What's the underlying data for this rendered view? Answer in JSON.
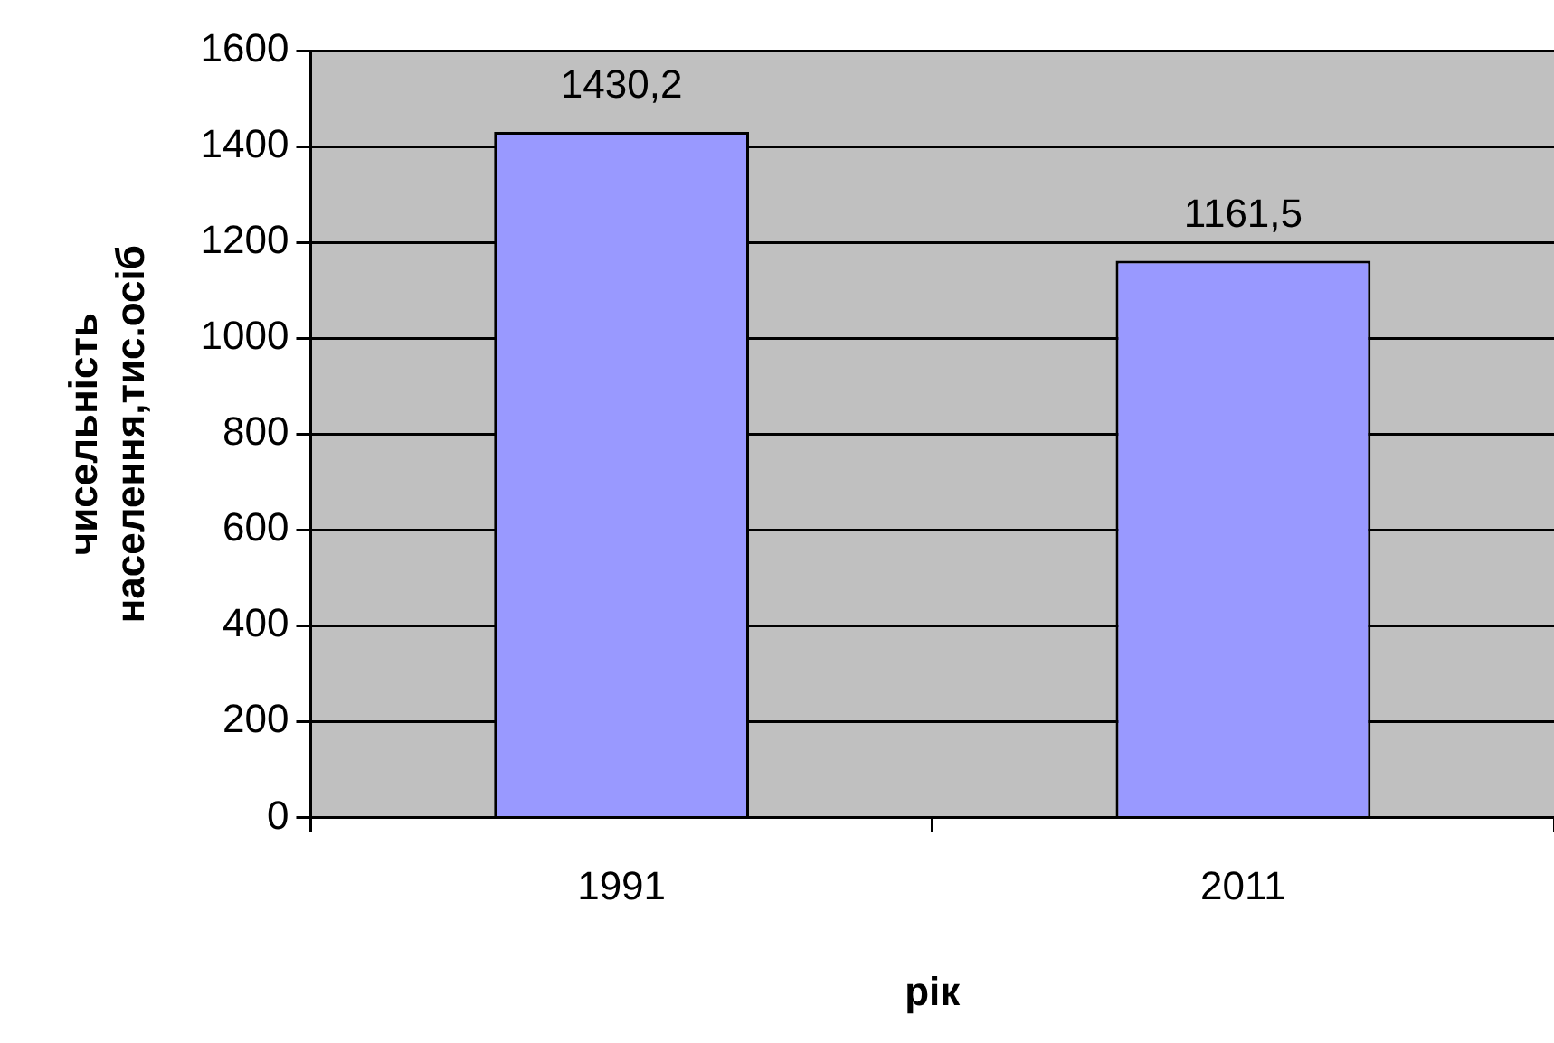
{
  "chart_data": {
    "type": "bar",
    "xlabel": "рік",
    "ylabel": "чисельність населення,тис.осіб",
    "categories": [
      "1991",
      "2011"
    ],
    "values": [
      1430.2,
      1161.5
    ],
    "value_labels": [
      "1430,2",
      "1161,5"
    ],
    "color": "#9999ff",
    "ylim": [
      0,
      1600
    ],
    "yticks": [
      0,
      200,
      400,
      600,
      800,
      1000,
      1200,
      1400,
      1600
    ],
    "grid": "y",
    "legend": false
  }
}
